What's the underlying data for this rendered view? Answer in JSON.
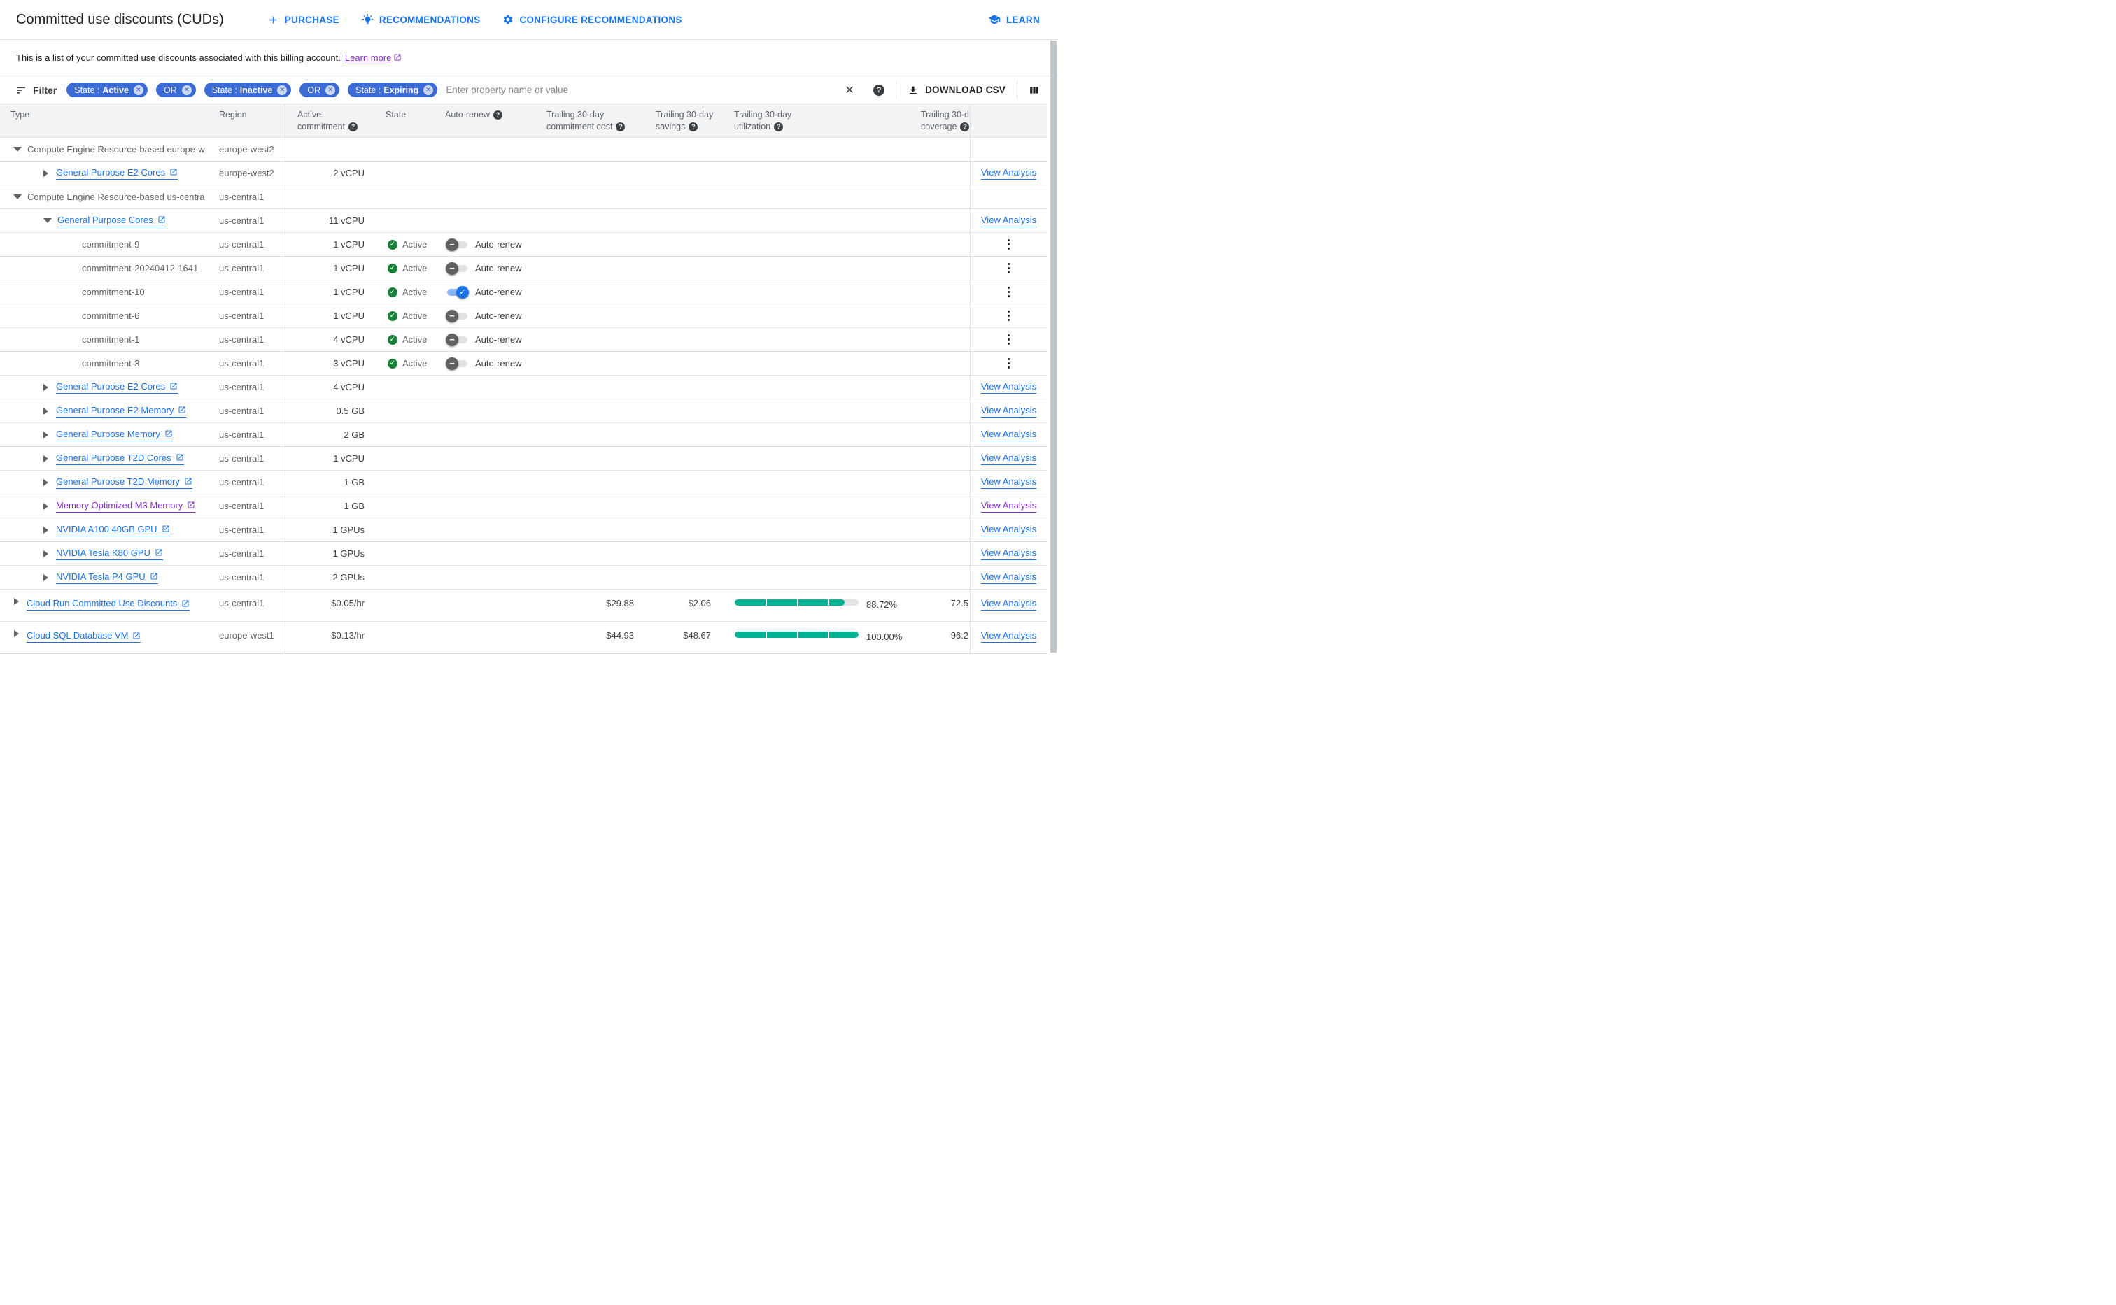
{
  "page": {
    "title": "Committed use discounts (CUDs)",
    "actions": [
      {
        "label": "PURCHASE"
      },
      {
        "label": "RECOMMENDATIONS"
      },
      {
        "label": "CONFIGURE RECOMMENDATIONS"
      }
    ],
    "learn_label": "LEARN"
  },
  "description": {
    "text": "This is a list of your committed use discounts associated with this billing account.",
    "link_label": "Learn more"
  },
  "filter": {
    "label": "Filter",
    "chips": [
      {
        "prefix": "State :",
        "value": "Active"
      },
      {
        "value": "OR"
      },
      {
        "prefix": "State :",
        "value": "Inactive"
      },
      {
        "value": "OR"
      },
      {
        "prefix": "State :",
        "value": "Expiring"
      }
    ],
    "placeholder": "Enter property name or value",
    "download_label": "DOWNLOAD CSV"
  },
  "table": {
    "columns": {
      "type": "Type",
      "region": "Region",
      "commitment_l1": "Active",
      "commitment_l2": "commitment",
      "state": "State",
      "autorenew": "Auto-renew",
      "cost_l1": "Trailing 30-day",
      "cost_l2": "commitment cost",
      "savings_l1": "Trailing 30-day",
      "savings_l2": "savings",
      "util_l1": "Trailing 30-day",
      "util_l2": "utilization",
      "cover_l1": "Trailing 30-d",
      "cover_l2": "coverage"
    },
    "autorenew_label": "Auto-renew",
    "view_analysis_label": "View Analysis",
    "rows": [
      {
        "level": "group",
        "arrow": "down",
        "type": "Compute Engine Resource-based europe-w",
        "region": "europe-west2"
      },
      {
        "level": "sub",
        "arrow": "right",
        "link": true,
        "type": "General Purpose E2 Cores",
        "region": "europe-west2",
        "commitment": "2 vCPU",
        "action": "view"
      },
      {
        "level": "group",
        "arrow": "down",
        "type": "Compute Engine Resource-based us-centra",
        "region": "us-central1"
      },
      {
        "level": "sub",
        "arrow": "down",
        "link": true,
        "type": "General Purpose Cores",
        "region": "us-central1",
        "commitment": "11 vCPU",
        "action": "view"
      },
      {
        "level": "leaf",
        "type": "commitment-9",
        "region": "us-central1",
        "commitment": "1 vCPU",
        "state": "Active",
        "autorenew": false,
        "action": "menu"
      },
      {
        "level": "leaf",
        "type": "commitment-20240412-1641",
        "region": "us-central1",
        "commitment": "1 vCPU",
        "state": "Active",
        "autorenew": false,
        "action": "menu"
      },
      {
        "level": "leaf",
        "type": "commitment-10",
        "region": "us-central1",
        "commitment": "1 vCPU",
        "state": "Active",
        "autorenew": true,
        "action": "menu"
      },
      {
        "level": "leaf",
        "type": "commitment-6",
        "region": "us-central1",
        "commitment": "1 vCPU",
        "state": "Active",
        "autorenew": false,
        "action": "menu"
      },
      {
        "level": "leaf",
        "type": "commitment-1",
        "region": "us-central1",
        "commitment": "4 vCPU",
        "state": "Active",
        "autorenew": false,
        "action": "menu"
      },
      {
        "level": "leaf",
        "type": "commitment-3",
        "region": "us-central1",
        "commitment": "3 vCPU",
        "state": "Active",
        "autorenew": false,
        "action": "menu"
      },
      {
        "level": "sub",
        "arrow": "right",
        "link": true,
        "type": "General Purpose E2 Cores",
        "region": "us-central1",
        "commitment": "4 vCPU",
        "action": "view"
      },
      {
        "level": "sub",
        "arrow": "right",
        "link": true,
        "type": "General Purpose E2 Memory",
        "region": "us-central1",
        "commitment": "0.5 GB",
        "action": "view"
      },
      {
        "level": "sub",
        "arrow": "right",
        "link": true,
        "type": "General Purpose Memory",
        "region": "us-central1",
        "commitment": "2 GB",
        "action": "view"
      },
      {
        "level": "sub",
        "arrow": "right",
        "link": true,
        "type": "General Purpose T2D Cores",
        "region": "us-central1",
        "commitment": "1 vCPU",
        "action": "view"
      },
      {
        "level": "sub",
        "arrow": "right",
        "link": true,
        "type": "General Purpose T2D Memory",
        "region": "us-central1",
        "commitment": "1 GB",
        "action": "view"
      },
      {
        "level": "sub",
        "arrow": "right",
        "link": true,
        "visited": true,
        "type": "Memory Optimized M3 Memory",
        "region": "us-central1",
        "commitment": "1 GB",
        "action": "view",
        "action_visited": true
      },
      {
        "level": "sub",
        "arrow": "right",
        "link": true,
        "type": "NVIDIA A100 40GB GPU",
        "region": "us-central1",
        "commitment": "1 GPUs",
        "action": "view"
      },
      {
        "level": "sub",
        "arrow": "right",
        "link": true,
        "type": "NVIDIA Tesla K80 GPU",
        "region": "us-central1",
        "commitment": "1 GPUs",
        "action": "view"
      },
      {
        "level": "sub",
        "arrow": "right",
        "link": true,
        "type": "NVIDIA Tesla P4 GPU",
        "region": "us-central1",
        "commitment": "2 GPUs",
        "action": "view"
      },
      {
        "level": "root",
        "arrow": "right",
        "link": true,
        "tall": true,
        "type": "Cloud Run Committed Use Discounts",
        "region": "us-central1",
        "commitment": "$0.05/hr",
        "cost": "$29.88",
        "savings": "$2.06",
        "util_pct": "88.72%",
        "coverage": "72.5",
        "action": "view"
      },
      {
        "level": "root",
        "arrow": "right",
        "link": true,
        "tall": true,
        "type": "Cloud SQL Database VM",
        "region": "europe-west1",
        "commitment": "$0.13/hr",
        "cost": "$44.93",
        "savings": "$48.67",
        "util_pct": "100.00%",
        "coverage": "96.2",
        "action": "view"
      }
    ]
  },
  "colors": {
    "accent_blue": "#1a73e8",
    "chip_blue": "#3b6cd6",
    "link_visited": "#8430ce",
    "state_green": "#188038",
    "bar_teal": "#00b294"
  }
}
